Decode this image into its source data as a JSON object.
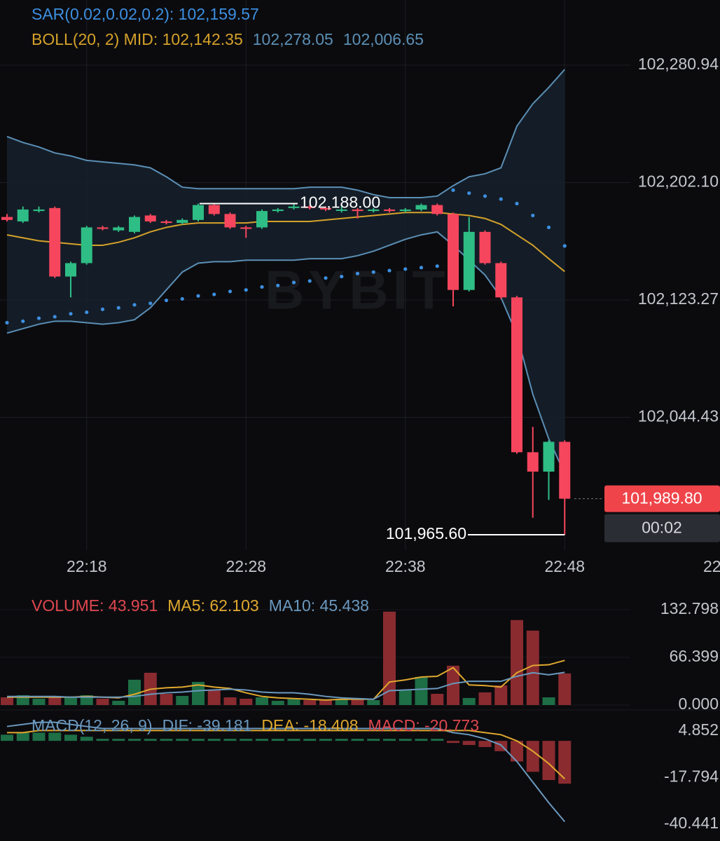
{
  "chart_data": [
    {
      "type": "candlestick",
      "watermark": "BYBIT",
      "categories": [
        null,
        null,
        null,
        null,
        null,
        "22:18",
        null,
        null,
        null,
        null,
        null,
        null,
        null,
        null,
        null,
        "22:28",
        null,
        null,
        null,
        null,
        null,
        null,
        null,
        null,
        null,
        "22:38",
        null,
        null,
        null,
        null,
        null,
        null,
        null,
        null,
        null,
        "22:48"
      ],
      "x_edge_label": "22",
      "open": [
        102179,
        102176,
        102183,
        102185,
        102139,
        102148,
        102172,
        102170,
        102169,
        102180,
        102176,
        102175,
        102177,
        102187,
        102181,
        102172,
        102172,
        102183,
        102185,
        102186,
        102185,
        102184,
        102184,
        102183,
        102184,
        102183,
        102184,
        102187,
        102181,
        102130,
        102169,
        102148,
        102125,
        102021,
        102008,
        102028
      ],
      "high": [
        102181,
        102186,
        102186,
        102186,
        102149,
        102173,
        102173,
        102173,
        102180,
        102181,
        102177,
        102178,
        102188,
        102188,
        102182,
        102173,
        102184,
        102185,
        102188,
        102187,
        102186,
        102186,
        102185,
        102185,
        102185,
        102185,
        102188,
        102188,
        102182,
        102179,
        102170,
        102149,
        102126,
        102038,
        102029,
        102029
      ],
      "low": [
        102176,
        102175,
        102182,
        102138,
        102125,
        102147,
        102170,
        102169,
        102168,
        102175,
        102174,
        102174,
        102176,
        102180,
        102171,
        102165,
        102171,
        102182,
        102184,
        102184,
        102183,
        102182,
        102178,
        102182,
        102182,
        102182,
        102183,
        102180,
        102119,
        102129,
        102147,
        102124,
        102020,
        101977,
        101989,
        101965.6
      ],
      "close": [
        102177,
        102184,
        102184,
        102139,
        102148,
        102172,
        102171,
        102172,
        102179,
        102176,
        102175,
        102177,
        102187,
        102181,
        102172,
        102171,
        102183,
        102184,
        102186,
        102185,
        102184,
        102184,
        102183,
        102184,
        102183,
        102184,
        102187,
        102181,
        102130,
        102169,
        102148,
        102125,
        102021,
        102008,
        102028,
        101989.8
      ],
      "up_color": "#2ebd85",
      "down_color": "#f6465d",
      "series": [
        {
          "name": "SAR(0.02,0.02,0.2): 102,159.57",
          "color": "#3d8fe0",
          "style": "dots",
          "values": [
            102108,
            102109,
            102111,
            102112,
            102114,
            102115,
            102117,
            102118,
            102120,
            102121,
            102123,
            102124,
            102126,
            102127,
            102129,
            102130,
            102132,
            102133,
            102135,
            102136,
            102138,
            102139,
            102141,
            102142,
            102143,
            102144,
            102145,
            102146,
            102197,
            102195,
            102193,
            102191,
            102188,
            102180,
            102172,
            102159.57
          ]
        },
        {
          "name": "102,278.05",
          "color": "#5b8fb5",
          "style": "line",
          "values": [
            102233,
            102229,
            102226,
            102222,
            102220,
            102217,
            102216,
            102215,
            102214,
            102212,
            102206,
            102199,
            102198,
            102198,
            102198,
            102198,
            102198,
            102198,
            102198,
            102199,
            102199,
            102199,
            102197,
            102194,
            102192,
            102192,
            102192,
            102193,
            102200,
            102206,
            102208,
            102212,
            102240,
            102255,
            102266,
            102278.05
          ]
        },
        {
          "name": "BOLL(20, 2) MID: 102,142.35",
          "color": "#d4a12a",
          "style": "line",
          "values": [
            102167,
            102165,
            102163,
            102162,
            102161,
            102160,
            102160,
            102162,
            102165,
            102169,
            102172,
            102174,
            102175,
            102175,
            102175,
            102175,
            102176,
            102176,
            102176,
            102176,
            102177,
            102178,
            102179,
            102180,
            102181,
            102182,
            102182,
            102182,
            102181,
            102180,
            102178,
            102174,
            102167,
            102160,
            102151,
            102142.35
          ]
        },
        {
          "name": "102,006.65",
          "color": "#5b8fb5",
          "style": "line",
          "values": [
            102101,
            102104,
            102107,
            102109,
            102109,
            102108,
            102107,
            102108,
            102110,
            102118,
            102130,
            102142,
            102148,
            102149,
            102149,
            102150,
            102150,
            102150,
            102150,
            102151,
            102151,
            102151,
            102153,
            102156,
            102160,
            102164,
            102167,
            102169,
            102160,
            102150,
            102140,
            102125,
            102100,
            102060,
            102030,
            102006.65
          ]
        }
      ],
      "band_color": "#16212b",
      "ylim": [
        101952.9,
        102324.7
      ],
      "yticks": [
        {
          "value": 102280.94,
          "label": "102,280.94"
        },
        {
          "value": 102202.1,
          "label": "102,202.10"
        },
        {
          "value": 102123.27,
          "label": "102,123.27"
        },
        {
          "value": 102044.43,
          "label": "102,044.43"
        }
      ],
      "high_marker": {
        "value": 102188.0,
        "label": "102,188.00"
      },
      "low_marker": {
        "value": 101965.6,
        "label": "101,965.60"
      },
      "last_price": {
        "value": 101989.8,
        "label": "101,989.80"
      },
      "countdown": "00:02"
    },
    {
      "type": "bar",
      "title": "VOLUME: 43.951",
      "values": [
        10.7,
        13.7,
        8.8,
        12.7,
        10.7,
        13.7,
        8.8,
        5.9,
        35.2,
        44.9,
        15.6,
        12.7,
        32.2,
        20.5,
        10.7,
        8.8,
        10.7,
        5.9,
        8.8,
        6.8,
        7.8,
        7.8,
        7.8,
        6.8,
        129.9,
        20.5,
        39.1,
        15.6,
        54.7,
        9.8,
        17.6,
        27.3,
        118.2,
        103.5,
        10.7,
        43.951
      ],
      "up_color": "#1e6e46",
      "down_color": "#8a2b30",
      "series": [
        {
          "name": "MA5: 62.103",
          "color": "#e0a82e",
          "values": [
            11,
            11,
            11,
            11,
            11,
            12,
            11,
            10,
            15,
            22,
            24,
            25,
            28,
            25,
            23,
            17,
            12,
            10,
            9,
            8,
            7,
            8,
            8,
            8,
            32,
            35,
            39,
            40,
            52,
            28,
            27,
            25,
            45,
            55,
            56,
            62.103
          ]
        },
        {
          "name": "MA10: 45.438",
          "color": "#6b98bd",
          "values": [
            12,
            12,
            12,
            12,
            11,
            11,
            11,
            11,
            12,
            15,
            17,
            18,
            20,
            21,
            22,
            21,
            18,
            17,
            17,
            15,
            12,
            10,
            9,
            8,
            20,
            21,
            22,
            23,
            30,
            33,
            33,
            33,
            40,
            45,
            42,
            45.438
          ]
        }
      ],
      "ylim": [
        0,
        139.4
      ],
      "yticks": [
        132.798,
        66.399,
        {
          "value": 0,
          "label": "0.000"
        }
      ]
    },
    {
      "type": "macd",
      "title": "MACD(12, 26, 9)",
      "values": [
        3,
        4,
        4,
        4,
        3,
        2,
        1,
        1,
        1,
        1,
        1,
        1,
        1,
        1,
        1,
        1,
        1,
        1,
        1,
        1,
        1,
        1,
        1,
        1,
        1,
        1,
        1,
        1,
        -1,
        -2,
        -3,
        -5,
        -10,
        -15,
        -19,
        -20.773
      ],
      "values_name": "MACD: -20.773",
      "up_color": "#1e6e46",
      "down_color": "#8a2b30",
      "name_color": "#e0474f",
      "series": [
        {
          "name": "DIF: -39.181",
          "color": "#6b98bd",
          "values": [
            7,
            8,
            9,
            9,
            8,
            7,
            6,
            6,
            6,
            6,
            6,
            6,
            6,
            6,
            6,
            6,
            6,
            6,
            6,
            6,
            6,
            6,
            6,
            6,
            6,
            6,
            6,
            6,
            4,
            3,
            1,
            -2,
            -10,
            -20,
            -30,
            -39.181
          ]
        },
        {
          "name": "DEA: -18.408",
          "color": "#e0a82e",
          "values": [
            4,
            4,
            5,
            5,
            5,
            5,
            5,
            5,
            5,
            5,
            5,
            5,
            5,
            5,
            5,
            5,
            5,
            5,
            5,
            5,
            5,
            5,
            5,
            5,
            5,
            5,
            5,
            5,
            5,
            5,
            4,
            3,
            0,
            -5,
            -11,
            -18.408
          ]
        }
      ],
      "ylim": [
        -43.48,
        12.63
      ],
      "yticks": [
        4.852,
        -17.794,
        -40.441
      ]
    }
  ]
}
